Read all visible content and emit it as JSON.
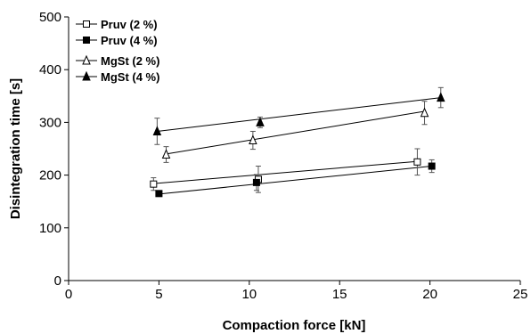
{
  "chart_data": {
    "type": "scatter",
    "title": "",
    "xlabel": "Compaction force [kN]",
    "ylabel": "Disintegration time [s]",
    "xlim": [
      0,
      25
    ],
    "ylim": [
      0,
      500
    ],
    "xticks": [
      0,
      5,
      10,
      15,
      20,
      25
    ],
    "yticks": [
      0,
      100,
      200,
      300,
      400,
      500
    ],
    "xtick_labels": [
      "0",
      "5",
      "10",
      "15",
      "20",
      "25"
    ],
    "ytick_labels": [
      "0",
      "100",
      "200",
      "300",
      "400",
      "500"
    ],
    "grid": false,
    "legend_position": "top-left",
    "series": [
      {
        "name": "Pruv  (2 %)",
        "marker": "square-open",
        "x": [
          4.7,
          10.5,
          19.3
        ],
        "y": [
          183,
          192,
          225
        ],
        "err": [
          12,
          25,
          25
        ],
        "fit_x": [
          4.7,
          19.3
        ],
        "fit_y": [
          184,
          226
        ]
      },
      {
        "name": "Pruv  (4 %)",
        "marker": "square-filled",
        "x": [
          5.0,
          10.4,
          20.1
        ],
        "y": [
          165,
          186,
          217
        ],
        "err": [
          5,
          15,
          12
        ],
        "fit_x": [
          5.0,
          20.1
        ],
        "fit_y": [
          164,
          217
        ]
      },
      {
        "name": "MgSt (2 %)",
        "marker": "triangle-open",
        "x": [
          5.4,
          10.2,
          19.7
        ],
        "y": [
          239,
          266,
          318
        ],
        "err": [
          15,
          17,
          22
        ],
        "fit_x": [
          5.4,
          19.7
        ],
        "fit_y": [
          240,
          321
        ]
      },
      {
        "name": "MgSt (4 %)",
        "marker": "triangle-filled",
        "x": [
          4.9,
          10.6,
          20.6
        ],
        "y": [
          283,
          300,
          347
        ],
        "err": [
          25,
          10,
          19
        ],
        "fit_x": [
          4.9,
          20.6
        ],
        "fit_y": [
          283,
          347
        ]
      }
    ]
  }
}
